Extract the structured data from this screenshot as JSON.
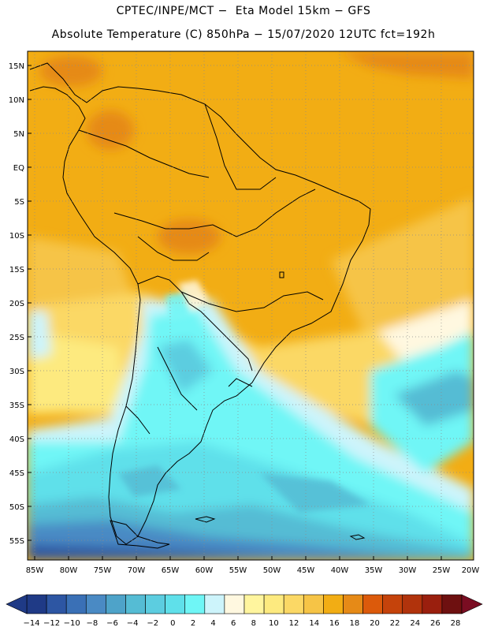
{
  "header": {
    "line1": "CPTEC/INPE/MCT −  Eta Model 15km − GFS",
    "line2": "Absolute Temperature (C) 850hPa − 15/07/2020 12UTC fct=192h"
  },
  "map": {
    "lat_labels": [
      "15N",
      "10N",
      "5N",
      "EQ",
      "5S",
      "10S",
      "15S",
      "20S",
      "25S",
      "30S",
      "35S",
      "40S",
      "45S",
      "50S",
      "55S"
    ],
    "lon_labels": [
      "85W",
      "80W",
      "75W",
      "70W",
      "65W",
      "60W",
      "55W",
      "50W",
      "45W",
      "40W",
      "35W",
      "30W",
      "25W",
      "20W"
    ],
    "lat_range": [
      -58,
      16.5
    ],
    "lon_range": [
      -86,
      -20
    ]
  },
  "colorbar": {
    "labels": [
      "-14",
      "-12",
      "-10",
      "-8",
      "-6",
      "-4",
      "-2",
      "0",
      "2",
      "4",
      "6",
      "8",
      "10",
      "12",
      "14",
      "16",
      "18",
      "20",
      "22",
      "24",
      "26",
      "28"
    ],
    "colors": [
      "#1f3a86",
      "#2d56a3",
      "#3a70b6",
      "#4a8ac4",
      "#4ea3c9",
      "#55bcd4",
      "#5ccde0",
      "#5fe0ea",
      "#6ff6f6",
      "#cdf4fb",
      "#fff8e0",
      "#fff59e",
      "#fdea7f",
      "#fbd865",
      "#f6c446",
      "#f2ad14",
      "#e68a17",
      "#dc5a0b",
      "#c5430b",
      "#b1330c",
      "#9a1f0e",
      "#6e1010"
    ]
  }
}
